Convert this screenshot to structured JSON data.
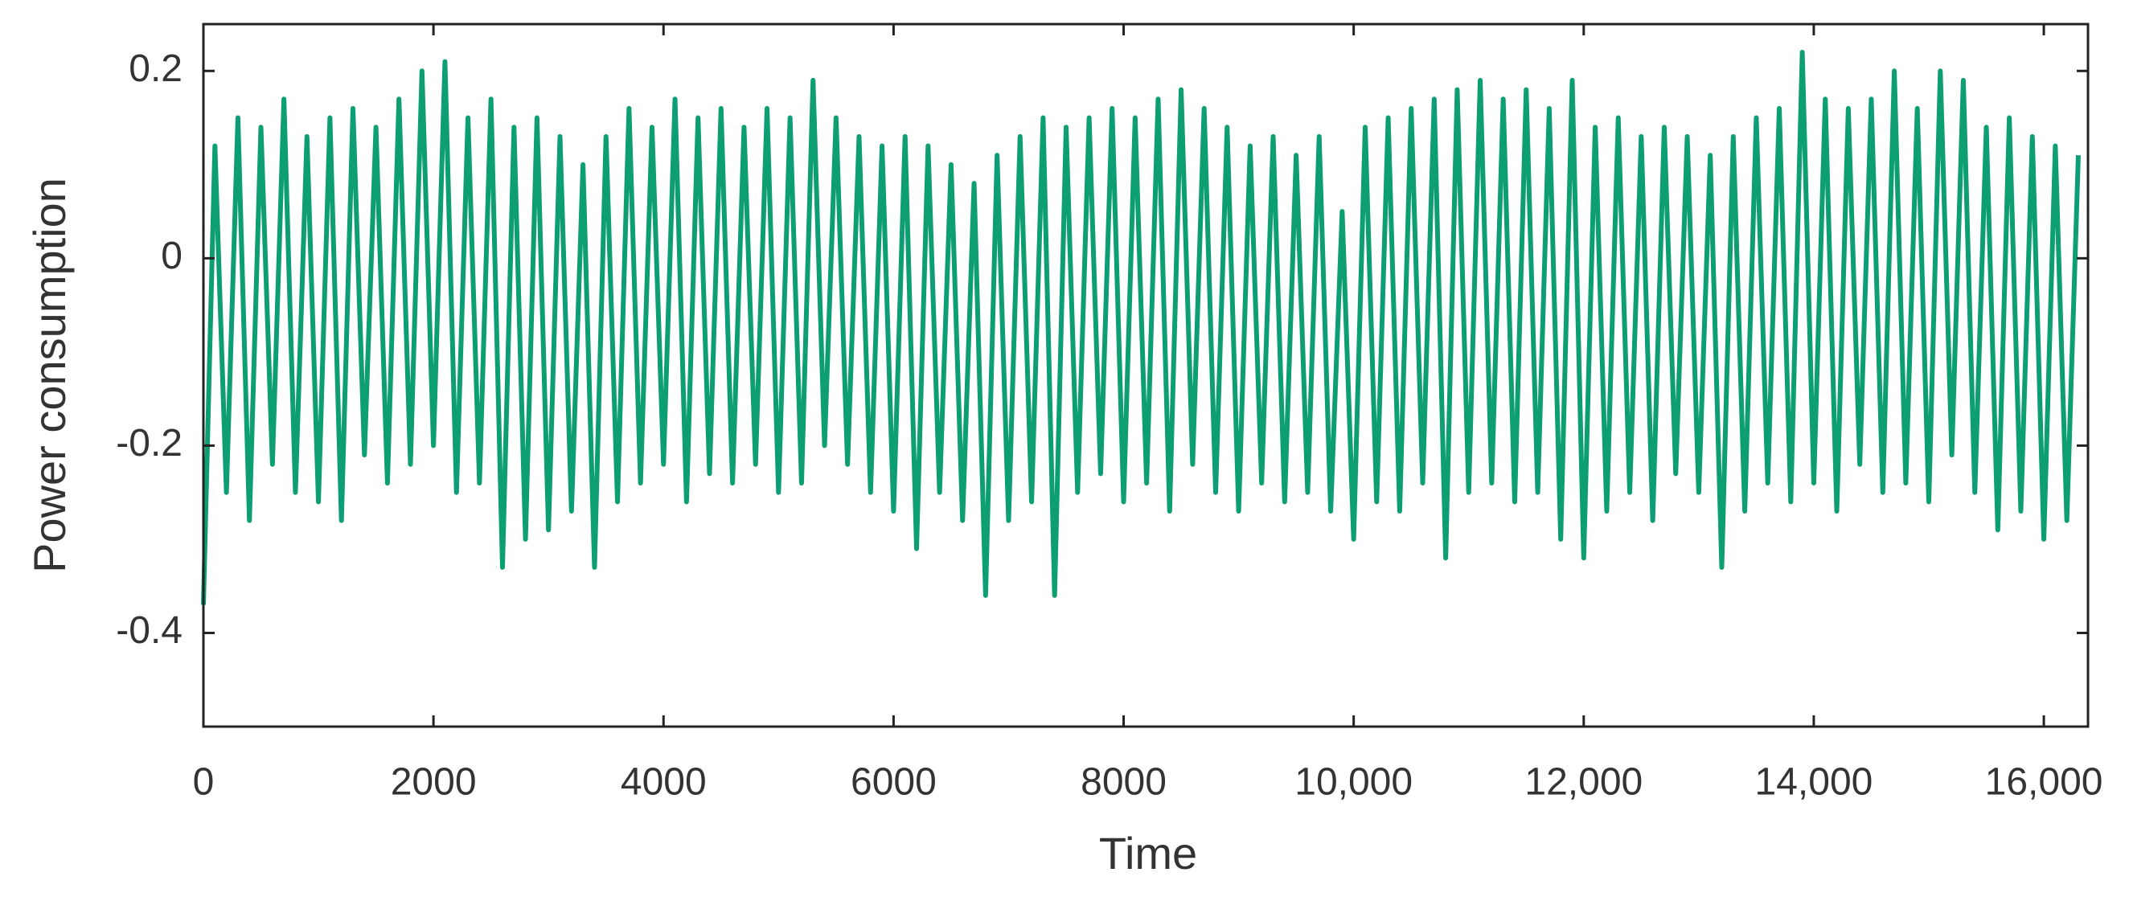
{
  "chart_data": {
    "type": "line",
    "x_label": "Time",
    "y_label": "Power consumption",
    "xlim": [
      0,
      16384
    ],
    "ylim": [
      -0.5,
      0.25
    ],
    "xticks": [
      0,
      2000,
      4000,
      6000,
      8000,
      {
        "value": 10000,
        "label": "10,000"
      },
      {
        "value": 12000,
        "label": "12,000"
      },
      {
        "value": 14000,
        "label": "14,000"
      },
      {
        "value": 16000,
        "label": "16,000"
      }
    ],
    "yticks": [
      -0.4,
      -0.2,
      0,
      0.2
    ],
    "x": [
      0,
      100,
      200,
      300,
      400,
      500,
      600,
      700,
      800,
      900,
      1000,
      1100,
      1200,
      1300,
      1400,
      1500,
      1600,
      1700,
      1800,
      1900,
      2000,
      2100,
      2200,
      2300,
      2400,
      2500,
      2600,
      2700,
      2800,
      2900,
      3000,
      3100,
      3200,
      3300,
      3400,
      3500,
      3600,
      3700,
      3800,
      3900,
      4000,
      4100,
      4200,
      4300,
      4400,
      4500,
      4600,
      4700,
      4800,
      4900,
      5000,
      5100,
      5200,
      5300,
      5400,
      5500,
      5600,
      5700,
      5800,
      5900,
      6000,
      6100,
      6200,
      6300,
      6400,
      6500,
      6600,
      6700,
      6800,
      6900,
      7000,
      7100,
      7200,
      7300,
      7400,
      7500,
      7600,
      7700,
      7800,
      7900,
      8000,
      8100,
      8200,
      8300,
      8400,
      8500,
      8600,
      8700,
      8800,
      8900,
      9000,
      9100,
      9200,
      9300,
      9400,
      9500,
      9600,
      9700,
      9800,
      9900,
      10000,
      10100,
      10200,
      10300,
      10400,
      10500,
      10600,
      10700,
      10800,
      10900,
      11000,
      11100,
      11200,
      11300,
      11400,
      11500,
      11600,
      11700,
      11800,
      11900,
      12000,
      12100,
      12200,
      12300,
      12400,
      12500,
      12600,
      12700,
      12800,
      12900,
      13000,
      13100,
      13200,
      13300,
      13400,
      13500,
      13600,
      13700,
      13800,
      13900,
      14000,
      14100,
      14200,
      14300,
      14400,
      14500,
      14600,
      14700,
      14800,
      14900,
      15000,
      15100,
      15200,
      15300,
      15400,
      15500,
      15600,
      15700,
      15800,
      15900,
      16000,
      16100,
      16200,
      16300
    ],
    "series": [
      {
        "color": "#00996a",
        "values": [
          -0.37,
          0.12,
          -0.25,
          0.15,
          -0.28,
          0.14,
          -0.22,
          0.17,
          -0.25,
          0.13,
          -0.26,
          0.15,
          -0.28,
          0.16,
          -0.21,
          0.14,
          -0.24,
          0.17,
          -0.22,
          0.2,
          -0.2,
          0.21,
          -0.25,
          0.15,
          -0.24,
          0.17,
          -0.33,
          0.14,
          -0.3,
          0.15,
          -0.29,
          0.13,
          -0.27,
          0.1,
          -0.33,
          0.13,
          -0.26,
          0.16,
          -0.24,
          0.14,
          -0.22,
          0.17,
          -0.26,
          0.15,
          -0.23,
          0.16,
          -0.24,
          0.14,
          -0.22,
          0.16,
          -0.25,
          0.15,
          -0.24,
          0.19,
          -0.2,
          0.15,
          -0.22,
          0.13,
          -0.25,
          0.12,
          -0.27,
          0.13,
          -0.31,
          0.12,
          -0.25,
          0.1,
          -0.28,
          0.08,
          -0.36,
          0.11,
          -0.28,
          0.13,
          -0.26,
          0.15,
          -0.36,
          0.14,
          -0.25,
          0.15,
          -0.23,
          0.16,
          -0.26,
          0.15,
          -0.24,
          0.17,
          -0.27,
          0.18,
          -0.22,
          0.16,
          -0.25,
          0.14,
          -0.27,
          0.12,
          -0.24,
          0.13,
          -0.26,
          0.11,
          -0.25,
          0.13,
          -0.27,
          0.05,
          -0.3,
          0.14,
          -0.26,
          0.15,
          -0.27,
          0.16,
          -0.24,
          0.17,
          -0.32,
          0.18,
          -0.25,
          0.19,
          -0.24,
          0.17,
          -0.26,
          0.18,
          -0.25,
          0.16,
          -0.3,
          0.19,
          -0.32,
          0.14,
          -0.27,
          0.15,
          -0.25,
          0.13,
          -0.28,
          0.14,
          -0.23,
          0.13,
          -0.25,
          0.11,
          -0.33,
          0.13,
          -0.27,
          0.15,
          -0.24,
          0.16,
          -0.26,
          0.22,
          -0.24,
          0.17,
          -0.27,
          0.16,
          -0.22,
          0.17,
          -0.25,
          0.2,
          -0.24,
          0.16,
          -0.26,
          0.2,
          -0.21,
          0.19,
          -0.25,
          0.14,
          -0.29,
          0.15,
          -0.27,
          0.13,
          -0.3,
          0.12,
          -0.28,
          0.11
        ]
      }
    ]
  }
}
